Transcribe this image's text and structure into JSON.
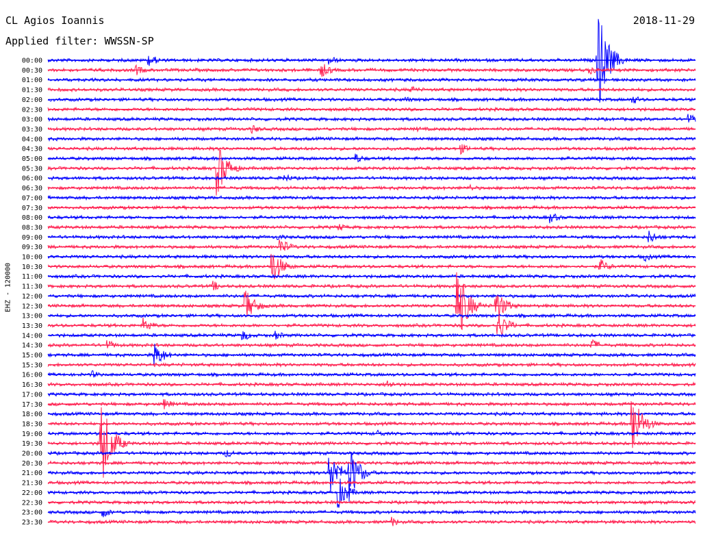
{
  "header": {
    "station": "CL Agios Ioannis",
    "filter": "Applied filter: WWSSN-SP",
    "date": "2018-11-29"
  },
  "chart_data": {
    "type": "line",
    "ylabel": "EHZ - 120000",
    "row_labels": [
      "00:00",
      "00:30",
      "01:00",
      "01:30",
      "02:00",
      "02:30",
      "03:00",
      "03:30",
      "04:00",
      "04:30",
      "05:00",
      "05:30",
      "06:00",
      "06:30",
      "07:00",
      "07:30",
      "08:00",
      "08:30",
      "09:00",
      "09:30",
      "10:00",
      "10:30",
      "11:00",
      "11:30",
      "12:00",
      "12:30",
      "13:00",
      "13:30",
      "14:00",
      "14:30",
      "15:00",
      "15:30",
      "16:00",
      "16:30",
      "17:00",
      "17:30",
      "18:00",
      "18:30",
      "19:00",
      "19:30",
      "20:00",
      "20:30",
      "21:00",
      "21:30",
      "22:00",
      "22:30",
      "23:00",
      "23:30"
    ],
    "trace_colors": [
      "#0000ff",
      "#ff2050"
    ],
    "x_range_minutes": [
      0,
      30
    ],
    "events": [
      {
        "row": 0,
        "minute": 4.6,
        "amp": 12
      },
      {
        "row": 0,
        "minute": 13.0,
        "amp": 8
      },
      {
        "row": 0,
        "minute": 25.4,
        "amp": 95
      },
      {
        "row": 1,
        "minute": 4.0,
        "amp": 10
      },
      {
        "row": 1,
        "minute": 12.6,
        "amp": 14
      },
      {
        "row": 1,
        "minute": 25.0,
        "amp": 8
      },
      {
        "row": 3,
        "minute": 16.8,
        "amp": 7
      },
      {
        "row": 4,
        "minute": 16.5,
        "amp": 6
      },
      {
        "row": 4,
        "minute": 27.0,
        "amp": 9
      },
      {
        "row": 6,
        "minute": 29.6,
        "amp": 10
      },
      {
        "row": 7,
        "minute": 9.4,
        "amp": 8
      },
      {
        "row": 7,
        "minute": 17.0,
        "amp": 5
      },
      {
        "row": 9,
        "minute": 19.0,
        "amp": 11
      },
      {
        "row": 10,
        "minute": 14.2,
        "amp": 9
      },
      {
        "row": 11,
        "minute": 7.8,
        "amp": 45
      },
      {
        "row": 12,
        "minute": 10.9,
        "amp": 8
      },
      {
        "row": 13,
        "minute": 19.5,
        "amp": 6
      },
      {
        "row": 16,
        "minute": 23.2,
        "amp": 10
      },
      {
        "row": 17,
        "minute": 13.4,
        "amp": 7
      },
      {
        "row": 18,
        "minute": 27.8,
        "amp": 12
      },
      {
        "row": 18,
        "minute": 10.6,
        "amp": 6
      },
      {
        "row": 19,
        "minute": 10.7,
        "amp": 16
      },
      {
        "row": 20,
        "minute": 27.6,
        "amp": 8
      },
      {
        "row": 21,
        "minute": 10.3,
        "amp": 34
      },
      {
        "row": 21,
        "minute": 25.5,
        "amp": 14
      },
      {
        "row": 23,
        "minute": 7.6,
        "amp": 9
      },
      {
        "row": 25,
        "minute": 9.1,
        "amp": 28
      },
      {
        "row": 25,
        "minute": 18.9,
        "amp": 70
      },
      {
        "row": 25,
        "minute": 20.7,
        "amp": 30
      },
      {
        "row": 27,
        "minute": 4.4,
        "amp": 12
      },
      {
        "row": 27,
        "minute": 20.8,
        "amp": 25
      },
      {
        "row": 28,
        "minute": 8.9,
        "amp": 12
      },
      {
        "row": 28,
        "minute": 10.5,
        "amp": 8
      },
      {
        "row": 29,
        "minute": 2.7,
        "amp": 9
      },
      {
        "row": 29,
        "minute": 25.1,
        "amp": 12
      },
      {
        "row": 30,
        "minute": 4.9,
        "amp": 22
      },
      {
        "row": 32,
        "minute": 2.0,
        "amp": 7
      },
      {
        "row": 33,
        "minute": 15.6,
        "amp": 10
      },
      {
        "row": 35,
        "minute": 5.3,
        "amp": 10
      },
      {
        "row": 37,
        "minute": 27.0,
        "amp": 55
      },
      {
        "row": 38,
        "minute": 15.2,
        "amp": 7
      },
      {
        "row": 39,
        "minute": 2.4,
        "amp": 80
      },
      {
        "row": 40,
        "minute": 8.2,
        "amp": 8
      },
      {
        "row": 42,
        "minute": 13.9,
        "amp": 50
      },
      {
        "row": 42,
        "minute": 13.0,
        "amp": 40
      },
      {
        "row": 44,
        "minute": 13.4,
        "amp": 28
      },
      {
        "row": 46,
        "minute": 2.5,
        "amp": 9
      },
      {
        "row": 47,
        "minute": 15.9,
        "amp": 8
      }
    ]
  }
}
